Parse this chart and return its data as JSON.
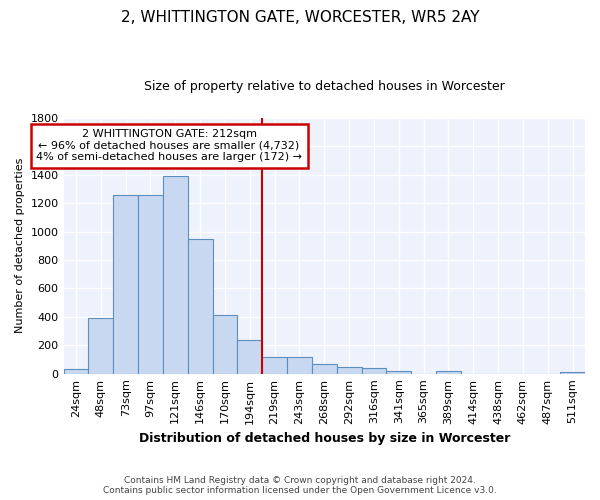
{
  "title": "2, WHITTINGTON GATE, WORCESTER, WR5 2AY",
  "subtitle": "Size of property relative to detached houses in Worcester",
  "xlabel": "Distribution of detached houses by size in Worcester",
  "ylabel": "Number of detached properties",
  "categories": [
    "24sqm",
    "48sqm",
    "73sqm",
    "97sqm",
    "121sqm",
    "146sqm",
    "170sqm",
    "194sqm",
    "219sqm",
    "243sqm",
    "268sqm",
    "292sqm",
    "316sqm",
    "341sqm",
    "365sqm",
    "389sqm",
    "414sqm",
    "438sqm",
    "462sqm",
    "487sqm",
    "511sqm"
  ],
  "values": [
    30,
    390,
    1260,
    1260,
    1390,
    950,
    410,
    235,
    115,
    115,
    70,
    50,
    40,
    20,
    0,
    20,
    0,
    0,
    0,
    0,
    15
  ],
  "bar_color": "#c8d8f0",
  "bar_edge_color": "#5a8fc0",
  "vline_x": 8.0,
  "vline_color": "#cc0000",
  "annotation_line1": "2 WHITTINGTON GATE: 212sqm",
  "annotation_line2": "← 96% of detached houses are smaller (4,732)",
  "annotation_line3": "4% of semi-detached houses are larger (172) →",
  "annotation_box_facecolor": "#ffffff",
  "annotation_box_edgecolor": "#cc0000",
  "ylim": [
    0,
    1800
  ],
  "yticks": [
    0,
    200,
    400,
    600,
    800,
    1000,
    1200,
    1400,
    1600,
    1800
  ],
  "bg_color": "#eef2fc",
  "grid_color": "#ffffff",
  "footer_line1": "Contains HM Land Registry data © Crown copyright and database right 2024.",
  "footer_line2": "Contains public sector information licensed under the Open Government Licence v3.0.",
  "title_fontsize": 11,
  "subtitle_fontsize": 9,
  "xlabel_fontsize": 9,
  "ylabel_fontsize": 8,
  "tick_fontsize": 8,
  "annot_fontsize": 8,
  "footer_fontsize": 6.5
}
